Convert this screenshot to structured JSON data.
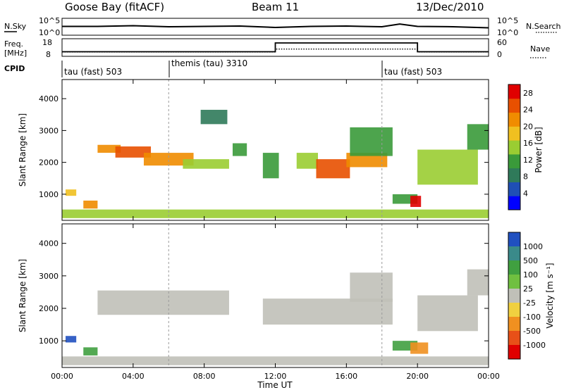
{
  "header": {
    "station": "Goose Bay (fitACF)",
    "beam": "Beam 11",
    "date": "13/Dec/2010"
  },
  "left_labels": {
    "nsky": "N.Sky",
    "freq": "Freq.",
    "mhz": "[MHz]",
    "cpid": "CPID"
  },
  "right_labels": {
    "nsearch": "N.Search",
    "nave": "Nave"
  },
  "noise_axis": {
    "top": "10^5",
    "bottom": "10^0"
  },
  "freq_axis": {
    "top": "18",
    "bottom": "8"
  },
  "nave_axis": {
    "top": "60",
    "bottom": "0"
  },
  "cpid": [
    {
      "label": "tau (fast) 503"
    },
    {
      "label": "themis (tau) 3310"
    },
    {
      "label": "tau (fast) 503"
    }
  ],
  "power_panel": {
    "ylabel": "Slant Range [km]",
    "cbar_label": "Power [dB]"
  },
  "velocity_panel": {
    "ylabel": "Slant Range [km]",
    "cbar_label": "Velocity [m s⁻¹]"
  },
  "xaxis_title": "Time UT",
  "colors": {
    "power_scale": [
      "#0000ff",
      "#1f4fb5",
      "#2f7a5a",
      "#3a9a3a",
      "#9acd32",
      "#f0c020",
      "#f08c00",
      "#e85000",
      "#e00000"
    ],
    "velocity_scale": [
      "#2050c0",
      "#3a8a8a",
      "#40a040",
      "#70c040",
      "#c0c0b8",
      "#f0d040",
      "#f09020",
      "#e85018",
      "#e00000"
    ]
  },
  "chart_data": [
    {
      "type": "line",
      "title": "N.Sky / N.Search",
      "ylim": [
        0,
        5
      ],
      "scale": "log10",
      "x_hours": [
        0,
        2,
        4,
        6,
        8,
        10,
        12,
        14,
        16,
        18,
        19,
        20,
        22,
        24
      ],
      "values": [
        2.6,
        2.6,
        2.8,
        2.5,
        2.6,
        2.7,
        2.3,
        2.6,
        2.7,
        2.5,
        3.3,
        2.6,
        2.5,
        2.2
      ]
    },
    {
      "type": "line",
      "title": "Freq. / Nave",
      "freq_ylim": [
        8,
        18
      ],
      "series": [
        {
          "name": "Freq.",
          "x_hours": [
            0,
            12,
            12,
            20,
            20,
            24
          ],
          "values": [
            10.6,
            10.6,
            15.6,
            15.6,
            10.6,
            10.6
          ]
        },
        {
          "name": "Nave",
          "x_hours": [
            0,
            12,
            12,
            20,
            20,
            24
          ],
          "values": [
            10,
            10,
            20,
            20,
            10,
            10
          ]
        }
      ]
    },
    {
      "type": "heatmap",
      "title": "Power [dB]",
      "xlabel": "Time UT",
      "ylabel": "Slant Range [km]",
      "xlim": [
        0,
        24
      ],
      "ylim": [
        180,
        4600
      ],
      "clim": [
        0,
        30
      ],
      "xticks": [
        "00:00",
        "04:00",
        "08:00",
        "12:00",
        "16:00",
        "20:00",
        "00:00"
      ],
      "yticks": [
        1000,
        2000,
        3000,
        4000
      ],
      "cticks": [
        4,
        8,
        12,
        16,
        20,
        24,
        28
      ],
      "cpid_boundaries_hours": [
        6,
        18
      ],
      "patches": [
        {
          "t0": 0.0,
          "t1": 24.0,
          "r0": 250,
          "r1": 520,
          "value": 16
        },
        {
          "t0": 2.0,
          "t1": 3.3,
          "r0": 2300,
          "r1": 2550,
          "value": 22
        },
        {
          "t0": 3.0,
          "t1": 5.0,
          "r0": 2150,
          "r1": 2500,
          "value": 26
        },
        {
          "t0": 4.6,
          "t1": 7.4,
          "r0": 1900,
          "r1": 2300,
          "value": 20
        },
        {
          "t0": 6.8,
          "t1": 9.4,
          "r0": 1800,
          "r1": 2100,
          "value": 16
        },
        {
          "t0": 7.8,
          "t1": 9.3,
          "r0": 3200,
          "r1": 3650,
          "value": 8
        },
        {
          "t0": 9.6,
          "t1": 10.4,
          "r0": 2200,
          "r1": 2600,
          "value": 10
        },
        {
          "t0": 11.3,
          "t1": 12.2,
          "r0": 1500,
          "r1": 2300,
          "value": 12
        },
        {
          "t0": 13.2,
          "t1": 14.4,
          "r0": 1800,
          "r1": 2300,
          "value": 14
        },
        {
          "t0": 14.3,
          "t1": 16.2,
          "r0": 1500,
          "r1": 2100,
          "value": 26
        },
        {
          "t0": 16.0,
          "t1": 18.3,
          "r0": 1850,
          "r1": 2300,
          "value": 22
        },
        {
          "t0": 16.2,
          "t1": 18.6,
          "r0": 2200,
          "r1": 3100,
          "value": 10
        },
        {
          "t0": 18.6,
          "t1": 20.0,
          "r0": 700,
          "r1": 1000,
          "value": 12
        },
        {
          "t0": 19.6,
          "t1": 20.2,
          "r0": 600,
          "r1": 950,
          "value": 28
        },
        {
          "t0": 20.0,
          "t1": 23.4,
          "r0": 1300,
          "r1": 2400,
          "value": 16
        },
        {
          "t0": 22.8,
          "t1": 24.0,
          "r0": 2400,
          "r1": 3200,
          "value": 10
        },
        {
          "t0": 0.2,
          "t1": 0.8,
          "r0": 950,
          "r1": 1150,
          "value": 18
        },
        {
          "t0": 1.2,
          "t1": 2.0,
          "r0": 550,
          "r1": 800,
          "value": 20
        }
      ]
    },
    {
      "type": "heatmap",
      "title": "Velocity [m s⁻¹]",
      "xlabel": "Time UT",
      "ylabel": "Slant Range [km]",
      "xlim": [
        0,
        24
      ],
      "ylim": [
        180,
        4600
      ],
      "ctick_labels": [
        "1000",
        "500",
        "100",
        "25",
        "-25",
        "-100",
        "-500",
        "-1000"
      ],
      "xticks": [
        "00:00",
        "04:00",
        "08:00",
        "12:00",
        "16:00",
        "20:00",
        "00:00"
      ],
      "yticks": [
        1000,
        2000,
        3000,
        4000
      ],
      "patches": [
        {
          "t0": 0.0,
          "t1": 24.0,
          "r0": 250,
          "r1": 520,
          "value": 0
        },
        {
          "t0": 2.0,
          "t1": 9.4,
          "r0": 1800,
          "r1": 2550,
          "value": 0
        },
        {
          "t0": 11.3,
          "t1": 18.6,
          "r0": 1500,
          "r1": 2300,
          "value": 0
        },
        {
          "t0": 16.2,
          "t1": 18.6,
          "r0": 2200,
          "r1": 3100,
          "value": 0
        },
        {
          "t0": 20.0,
          "t1": 23.4,
          "r0": 1300,
          "r1": 2400,
          "value": 0
        },
        {
          "t0": 22.8,
          "t1": 24.0,
          "r0": 2400,
          "r1": 3200,
          "value": 0
        },
        {
          "t0": 18.6,
          "t1": 20.0,
          "r0": 700,
          "r1": 1000,
          "value": 100
        },
        {
          "t0": 19.6,
          "t1": 20.6,
          "r0": 600,
          "r1": 950,
          "value": -300
        },
        {
          "t0": 0.2,
          "t1": 0.8,
          "r0": 950,
          "r1": 1150,
          "value": 700
        },
        {
          "t0": 1.2,
          "t1": 2.0,
          "r0": 550,
          "r1": 800,
          "value": 150
        }
      ]
    }
  ]
}
